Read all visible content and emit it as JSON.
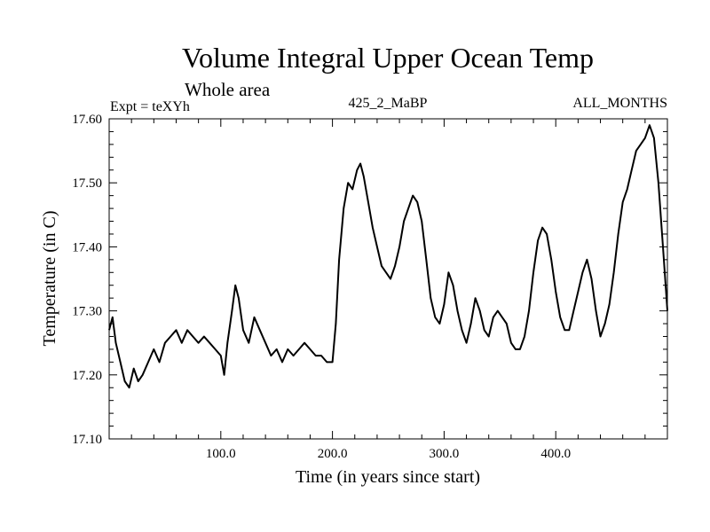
{
  "chart_data": {
    "type": "line",
    "title": "Volume Integral Upper Ocean Temp",
    "subtitle": "Whole area",
    "header_left": "Expt = teXYh",
    "header_center": "425_2_MaBP",
    "header_right": "ALL_MONTHS",
    "xlabel": "Time (in years since start)",
    "ylabel": "Temperature (in C)",
    "xlim": [
      0,
      500
    ],
    "ylim": [
      17.1,
      17.6
    ],
    "x_ticks": [
      100,
      200,
      300,
      400
    ],
    "x_tick_labels": [
      "100.0",
      "200.0",
      "300.0",
      "400.0"
    ],
    "y_ticks": [
      17.1,
      17.2,
      17.3,
      17.4,
      17.5,
      17.6
    ],
    "y_tick_labels": [
      "17.10",
      "17.20",
      "17.30",
      "17.40",
      "17.50",
      "17.60"
    ],
    "grid": false,
    "series": [
      {
        "color": "#000000",
        "x": [
          0,
          3,
          6,
          10,
          14,
          18,
          22,
          26,
          30,
          35,
          40,
          45,
          50,
          55,
          60,
          65,
          70,
          75,
          80,
          85,
          90,
          95,
          100,
          103,
          106,
          110,
          113,
          116,
          120,
          125,
          130,
          135,
          140,
          145,
          150,
          155,
          160,
          165,
          170,
          175,
          180,
          185,
          190,
          195,
          200,
          203,
          206,
          210,
          214,
          218,
          222,
          225,
          228,
          232,
          236,
          240,
          244,
          248,
          252,
          256,
          260,
          264,
          268,
          272,
          276,
          280,
          284,
          288,
          292,
          296,
          300,
          304,
          308,
          312,
          316,
          320,
          324,
          328,
          332,
          336,
          340,
          344,
          348,
          352,
          356,
          360,
          364,
          368,
          372,
          376,
          380,
          384,
          388,
          392,
          396,
          400,
          404,
          408,
          412,
          416,
          420,
          424,
          428,
          432,
          436,
          440,
          444,
          448,
          452,
          456,
          460,
          464,
          468,
          472,
          476,
          480,
          484,
          488,
          492,
          496,
          500
        ],
        "y": [
          17.27,
          17.29,
          17.25,
          17.22,
          17.19,
          17.18,
          17.21,
          17.19,
          17.2,
          17.22,
          17.24,
          17.22,
          17.25,
          17.26,
          17.27,
          17.25,
          17.27,
          17.26,
          17.25,
          17.26,
          17.25,
          17.24,
          17.23,
          17.2,
          17.25,
          17.3,
          17.34,
          17.32,
          17.27,
          17.25,
          17.29,
          17.27,
          17.25,
          17.23,
          17.24,
          17.22,
          17.24,
          17.23,
          17.24,
          17.25,
          17.24,
          17.23,
          17.23,
          17.22,
          17.22,
          17.28,
          17.38,
          17.46,
          17.5,
          17.49,
          17.52,
          17.53,
          17.51,
          17.47,
          17.43,
          17.4,
          17.37,
          17.36,
          17.35,
          17.37,
          17.4,
          17.44,
          17.46,
          17.48,
          17.47,
          17.44,
          17.38,
          17.32,
          17.29,
          17.28,
          17.31,
          17.36,
          17.34,
          17.3,
          17.27,
          17.25,
          17.28,
          17.32,
          17.3,
          17.27,
          17.26,
          17.29,
          17.3,
          17.29,
          17.28,
          17.25,
          17.24,
          17.24,
          17.26,
          17.3,
          17.36,
          17.41,
          17.43,
          17.42,
          17.38,
          17.33,
          17.29,
          17.27,
          17.27,
          17.3,
          17.33,
          17.36,
          17.38,
          17.35,
          17.3,
          17.26,
          17.28,
          17.31,
          17.36,
          17.42,
          17.47,
          17.49,
          17.52,
          17.55,
          17.56,
          17.57,
          17.59,
          17.57,
          17.5,
          17.4,
          17.3
        ]
      }
    ]
  }
}
